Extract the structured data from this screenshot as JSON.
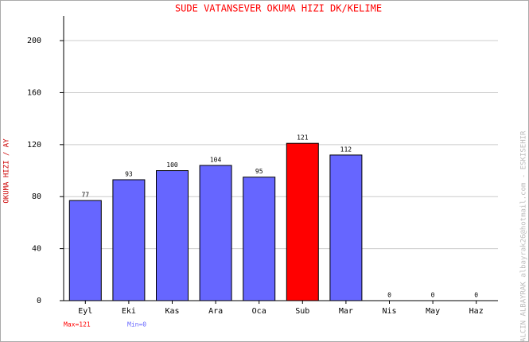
{
  "chart_data": {
    "type": "bar",
    "title": "SUDE VATANSEVER   OKUMA HIZI  DK/KELIME",
    "y_label": "OKUMA HIZI / AY",
    "categories": [
      "Eyl",
      "Eki",
      "Kas",
      "Ara",
      "Oca",
      "Sub",
      "Mar",
      "Nis",
      "May",
      "Haz"
    ],
    "values": [
      77,
      93,
      100,
      104,
      95,
      121,
      112,
      0,
      0,
      0
    ],
    "colors": [
      "#6666ff",
      "#6666ff",
      "#6666ff",
      "#6666ff",
      "#6666ff",
      "#ff0000",
      "#6666ff",
      "#6666ff",
      "#6666ff",
      "#6666ff"
    ],
    "ylim": [
      0,
      219
    ],
    "yticks": [
      0,
      40,
      80,
      120,
      160,
      200
    ],
    "grid": true,
    "annotations": [
      {
        "text": "Max=121",
        "color": "#ff0000"
      },
      {
        "text": "Min=0",
        "color": "#6666ff"
      }
    ],
    "credit": "YALCIN ALBAYRAK  albayrak26@hotmail.com - ESKISEHIR"
  }
}
